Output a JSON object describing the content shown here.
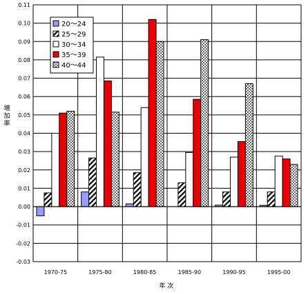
{
  "chart_data": {
    "type": "bar",
    "title": "",
    "xlabel": "年 次",
    "ylabel": "増加率",
    "ylim": [
      -0.03,
      0.11
    ],
    "ytick_step": 0.01,
    "grid": true,
    "legend_position": "top-left",
    "categories": [
      "1970-75",
      "1975-80",
      "1980-85",
      "1985-90",
      "1990-95",
      "1995-00"
    ],
    "series": [
      {
        "name": "20～24",
        "pattern": "solid-blue",
        "color": "#9a9aff",
        "values": [
          -0.005,
          0.008,
          0.0015,
          0.0,
          0.0008,
          0.0007
        ]
      },
      {
        "name": "25～29",
        "pattern": "diagonal-hatch",
        "color": "#000000",
        "values": [
          0.0075,
          0.0265,
          0.0185,
          0.013,
          0.008,
          0.008
        ]
      },
      {
        "name": "30～34",
        "pattern": "white",
        "color": "#ffffff",
        "values": [
          0.04,
          0.0815,
          0.054,
          0.0295,
          0.027,
          0.0275
        ]
      },
      {
        "name": "35～39",
        "pattern": "solid-red",
        "color": "#ee0000",
        "values": [
          0.051,
          0.0685,
          0.102,
          0.0585,
          0.0355,
          0.026
        ]
      },
      {
        "name": "40～44",
        "pattern": "dots",
        "color": "#000000",
        "values": [
          0.052,
          0.0515,
          0.09,
          0.091,
          0.067,
          0.023
        ]
      }
    ]
  }
}
